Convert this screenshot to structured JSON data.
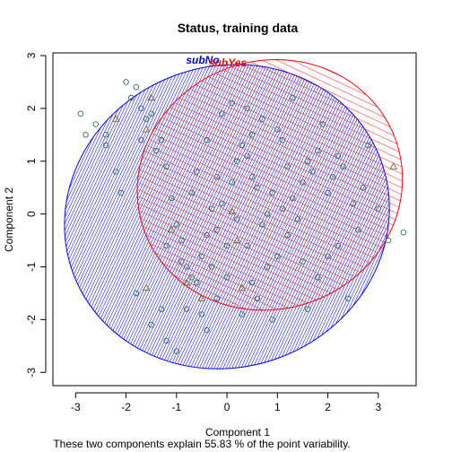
{
  "chart_data": {
    "type": "scatter",
    "title": "Status, training data",
    "xlabel": "Component 1",
    "ylabel": "Component 2",
    "subtitle": "These two components explain 55.83 % of the point variability.",
    "xlim": [
      -3.45,
      3.75
    ],
    "ylim": [
      -3.25,
      3.05
    ],
    "xticks": [
      "-3",
      "-2",
      "-1",
      "0",
      "1",
      "2",
      "3"
    ],
    "yticks": [
      "-3",
      "-2",
      "-1",
      "0",
      "1",
      "2",
      "3"
    ],
    "colors": {
      "subNo": "#0000cc",
      "subYes": "#ff0000",
      "points": "#2f6b6b",
      "yes_point": "#7a6a2a"
    },
    "clusters": [
      {
        "label": "subNo",
        "color": "#0000ff",
        "cx": 0.0,
        "cy": -0.05,
        "rx": 3.25,
        "ry": 2.85,
        "angle_deg": -20
      },
      {
        "label": "subYes",
        "color": "#ff0000",
        "cx": 0.85,
        "cy": 0.55,
        "rx": 2.65,
        "ry": 2.35,
        "angle_deg": -20
      }
    ],
    "series": [
      {
        "name": "subNo",
        "shape": "circle",
        "points": [
          [
            -2.9,
            1.9
          ],
          [
            -2.8,
            1.5
          ],
          [
            -2.6,
            1.7
          ],
          [
            -2.4,
            1.5
          ],
          [
            -2.2,
            0.8
          ],
          [
            -2.0,
            2.5
          ],
          [
            -1.9,
            2.2
          ],
          [
            -1.8,
            2.4
          ],
          [
            -1.7,
            2.0
          ],
          [
            -1.6,
            1.8
          ],
          [
            -1.5,
            1.9
          ],
          [
            -1.4,
            1.2
          ],
          [
            -1.3,
            1.4
          ],
          [
            -1.2,
            0.9
          ],
          [
            -1.1,
            0.3
          ],
          [
            -1.0,
            -0.2
          ],
          [
            -0.9,
            -0.5
          ],
          [
            -0.8,
            -1.0
          ],
          [
            -0.7,
            -1.2
          ],
          [
            -0.6,
            -1.3
          ],
          [
            -0.5,
            -0.8
          ],
          [
            -0.4,
            -0.4
          ],
          [
            -0.3,
            0.1
          ],
          [
            -0.2,
            -0.3
          ],
          [
            -0.1,
            0.2
          ],
          [
            0.0,
            -0.6
          ],
          [
            0.1,
            0.6
          ],
          [
            0.2,
            1.0
          ],
          [
            0.3,
            1.3
          ],
          [
            0.4,
            1.1
          ],
          [
            0.5,
            0.7
          ],
          [
            0.6,
            0.5
          ],
          [
            0.7,
            -0.2
          ],
          [
            0.8,
            0.0
          ],
          [
            0.9,
            0.4
          ],
          [
            1.0,
            1.6
          ],
          [
            1.1,
            1.4
          ],
          [
            1.2,
            0.9
          ],
          [
            1.3,
            0.3
          ],
          [
            1.4,
            -0.1
          ],
          [
            1.5,
            0.6
          ],
          [
            1.6,
            1.0
          ],
          [
            1.7,
            0.8
          ],
          [
            1.8,
            1.2
          ],
          [
            1.9,
            1.7
          ],
          [
            2.0,
            0.4
          ],
          [
            2.1,
            0.7
          ],
          [
            2.2,
            1.1
          ],
          [
            2.3,
            0.9
          ],
          [
            2.5,
            0.2
          ],
          [
            2.7,
            0.5
          ],
          [
            2.8,
            1.3
          ],
          [
            3.0,
            0.1
          ],
          [
            3.2,
            -0.5
          ],
          [
            3.5,
            -0.35
          ],
          [
            -1.8,
            -1.5
          ],
          [
            -1.5,
            -2.1
          ],
          [
            -1.2,
            -2.4
          ],
          [
            -1.0,
            -2.6
          ],
          [
            -0.8,
            -1.8
          ],
          [
            -0.5,
            -1.9
          ],
          [
            -0.2,
            -1.6
          ],
          [
            0.3,
            -1.9
          ],
          [
            0.5,
            -1.3
          ],
          [
            0.8,
            -1.0
          ],
          [
            1.0,
            -0.8
          ],
          [
            1.2,
            -0.4
          ],
          [
            1.5,
            -0.9
          ],
          [
            1.8,
            -1.2
          ],
          [
            2.0,
            -0.8
          ],
          [
            2.2,
            -0.6
          ],
          [
            2.4,
            -1.6
          ],
          [
            -0.6,
            0.8
          ],
          [
            -0.4,
            1.4
          ],
          [
            -0.1,
            1.9
          ],
          [
            0.1,
            2.1
          ],
          [
            0.4,
            2.0
          ],
          [
            0.7,
            1.8
          ],
          [
            1.3,
            2.2
          ],
          [
            -1.2,
            -0.6
          ],
          [
            -0.9,
            -0.9
          ],
          [
            -0.3,
            -1.0
          ],
          [
            0.0,
            -1.2
          ],
          [
            0.2,
            -0.1
          ],
          [
            0.4,
            -0.6
          ],
          [
            -2.4,
            1.3
          ],
          [
            -1.7,
            1.4
          ],
          [
            -2.1,
            0.4
          ],
          [
            -0.7,
            0.4
          ],
          [
            0.6,
            -1.6
          ],
          [
            -1.3,
            -1.8
          ],
          [
            -0.4,
            -2.2
          ],
          [
            0.9,
            -2.0
          ],
          [
            1.6,
            -1.8
          ],
          [
            2.6,
            -0.3
          ],
          [
            -0.2,
            0.7
          ],
          [
            0.5,
            1.5
          ],
          [
            1.1,
            0.1
          ]
        ]
      },
      {
        "name": "subYes",
        "shape": "triangle",
        "points": [
          [
            3.3,
            0.9
          ],
          [
            -2.2,
            1.8
          ],
          [
            -1.6,
            1.6
          ],
          [
            -1.5,
            2.2
          ],
          [
            0.2,
            -0.5
          ],
          [
            0.1,
            0.05
          ],
          [
            -0.8,
            -1.3
          ],
          [
            -0.5,
            -1.6
          ],
          [
            0.3,
            -1.4
          ],
          [
            -1.1,
            -0.3
          ],
          [
            -1.6,
            -1.4
          ]
        ]
      }
    ]
  }
}
